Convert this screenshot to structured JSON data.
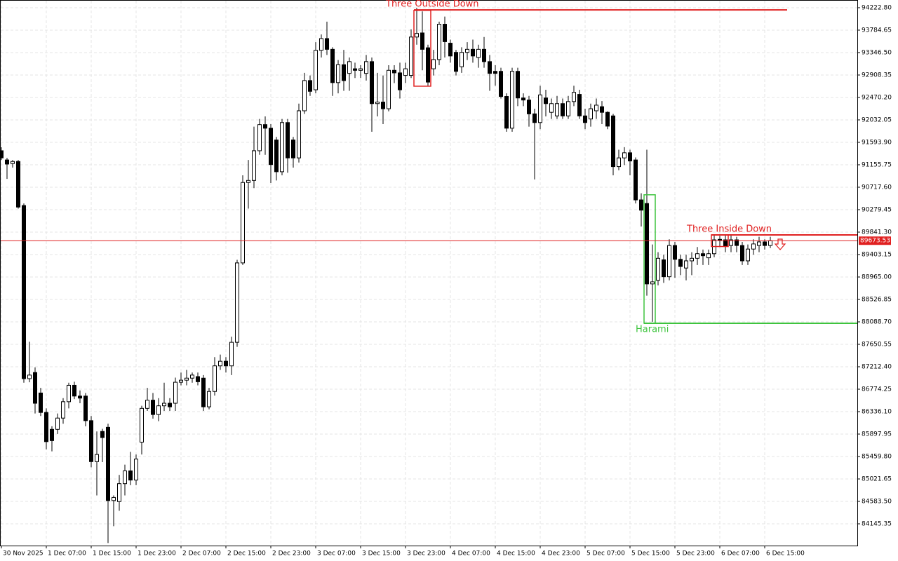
{
  "chart_data": {
    "type": "candlestick",
    "categories": [
      "30 Nov 2025",
      null,
      null,
      null,
      null,
      null,
      null,
      null,
      "1 Dec 07:00",
      null,
      null,
      null,
      null,
      null,
      null,
      null,
      "1 Dec 15:00",
      null,
      null,
      null,
      null,
      null,
      null,
      null,
      "1 Dec 23:00",
      null,
      null,
      null,
      null,
      null,
      null,
      null,
      "2 Dec 07:00",
      null,
      null,
      null,
      null,
      null,
      null,
      null,
      "2 Dec 15:00",
      null,
      null,
      null,
      null,
      null,
      null,
      null,
      "2 Dec 23:00",
      null,
      null,
      null,
      null,
      null,
      null,
      null,
      "3 Dec 07:00",
      null,
      null,
      null,
      null,
      null,
      null,
      null,
      "3 Dec 15:00",
      null,
      null,
      null,
      null,
      null,
      null,
      null,
      "3 Dec 23:00",
      null,
      null,
      null,
      null,
      null,
      null,
      null,
      "4 Dec 07:00",
      null,
      null,
      null,
      null,
      null,
      null,
      null,
      "4 Dec 15:00",
      null,
      null,
      null,
      null,
      null,
      null,
      null,
      "4 Dec 23:00",
      null,
      null,
      null,
      null,
      null,
      null,
      null,
      "5 Dec 07:00",
      null,
      null,
      null,
      null,
      null,
      null,
      null,
      "5 Dec 15:00",
      null,
      null,
      null,
      null,
      null,
      null,
      null,
      "5 Dec 23:00",
      null,
      null,
      null,
      null,
      null,
      null,
      null,
      "6 Dec 07:00",
      null,
      null,
      null,
      null,
      null,
      null,
      null,
      "6 Dec 15:00",
      null
    ],
    "open": [
      91430,
      91250,
      91180,
      91220,
      90360,
      86980,
      87100,
      86700,
      86320,
      85990,
      85990,
      86210,
      86530,
      86850,
      86640,
      86640,
      86160,
      85360,
      85950,
      86030,
      84600,
      84580,
      84930,
      85180,
      85000,
      85740,
      86400,
      86560,
      86280,
      86450,
      86500,
      86500,
      86910,
      86950,
      86990,
      87020,
      86990,
      86430,
      86730,
      87230,
      87320,
      87230,
      87690,
      89240,
      90810,
      90850,
      91430,
      91940,
      91870,
      91640,
      91020,
      91980,
      91640,
      91290,
      92210,
      92800,
      92620,
      93390,
      93620,
      93410,
      92760,
      93110,
      92940,
      93030,
      93000,
      92940,
      93170,
      92350,
      92380,
      92250,
      93000,
      92950,
      92900,
      92900,
      93650,
      93730,
      93440,
      93030,
      93210,
      93900,
      93530,
      93350,
      93070,
      93350,
      93410,
      93250,
      93410,
      93170,
      92980,
      92980,
      92490,
      91870,
      92980,
      92460,
      92420,
      92150,
      91980,
      92460,
      92180,
      92110,
      92350,
      92110,
      92390,
      92530,
      92110,
      92050,
      92210,
      92290,
      92180,
      92110,
      91120,
      91290,
      91390,
      91250,
      90470,
      90400,
      88830,
      88900,
      89300,
      88970,
      89580,
      89310,
      89140,
      89280,
      89330,
      89420,
      89340,
      89420,
      89690,
      89690,
      89580,
      89690,
      89580,
      89280,
      89510,
      89580,
      89650,
      89580
    ],
    "high": [
      91500,
      91290,
      91250,
      91250,
      90400,
      87700,
      87200,
      86800,
      86400,
      86050,
      86300,
      86600,
      86900,
      86920,
      86750,
      86700,
      86250,
      85950,
      86000,
      86100,
      84700,
      85100,
      85300,
      85550,
      85500,
      86450,
      86800,
      86700,
      86600,
      86900,
      86600,
      87000,
      87100,
      87150,
      87100,
      87100,
      87050,
      86800,
      87400,
      87450,
      87400,
      87800,
      89300,
      90950,
      91250,
      91900,
      92050,
      92100,
      91950,
      91700,
      92050,
      92050,
      91700,
      92350,
      92950,
      92900,
      93550,
      93700,
      93950,
      93450,
      93200,
      93400,
      93250,
      93150,
      93100,
      93300,
      93250,
      92950,
      92900,
      93100,
      93100,
      93150,
      93150,
      93800,
      94220,
      94150,
      93500,
      93400,
      93950,
      94050,
      93600,
      93400,
      93450,
      93550,
      93600,
      93500,
      93650,
      93300,
      93100,
      93050,
      92550,
      93050,
      93050,
      92550,
      92500,
      92250,
      92700,
      92620,
      92450,
      92500,
      92450,
      92500,
      92700,
      92620,
      92250,
      92350,
      92450,
      92400,
      92200,
      92150,
      91450,
      91500,
      91450,
      91300,
      90600,
      91450,
      89600,
      89450,
      89400,
      89700,
      89650,
      89400,
      89400,
      89450,
      89550,
      89500,
      89500,
      89800,
      89770,
      89780,
      89800,
      89750,
      89650,
      89600,
      89700,
      89750,
      89700,
      89750
    ],
    "low": [
      91250,
      90880,
      91100,
      90300,
      86900,
      86910,
      86300,
      86250,
      85600,
      85560,
      85900,
      86100,
      86400,
      86580,
      86500,
      86050,
      85250,
      84700,
      85350,
      83770,
      84100,
      84400,
      84700,
      84900,
      84900,
      85500,
      86350,
      86200,
      86150,
      86350,
      86350,
      86350,
      86850,
      86850,
      86900,
      86850,
      86350,
      86380,
      86650,
      87150,
      87100,
      87050,
      87600,
      89200,
      90300,
      90700,
      91350,
      91350,
      90800,
      90850,
      90950,
      91000,
      91100,
      91200,
      92150,
      92500,
      92550,
      93250,
      93300,
      92500,
      92550,
      92600,
      92600,
      92850,
      92850,
      92800,
      91800,
      92100,
      91950,
      92200,
      92750,
      92450,
      92750,
      92850,
      93500,
      93000,
      92700,
      92900,
      93100,
      93250,
      93150,
      92900,
      92950,
      93200,
      93150,
      93050,
      93050,
      92600,
      92700,
      92450,
      91800,
      91800,
      92300,
      92300,
      91900,
      90870,
      91850,
      92100,
      92050,
      92050,
      92050,
      92050,
      92300,
      92050,
      91850,
      91900,
      92050,
      91950,
      91850,
      90950,
      91050,
      91150,
      90950,
      90400,
      89950,
      88600,
      88090,
      88800,
      88850,
      88900,
      88950,
      89000,
      88900,
      89000,
      89200,
      89200,
      89200,
      89350,
      89550,
      89450,
      89450,
      89450,
      89200,
      89200,
      89400,
      89450,
      89500,
      89530
    ],
    "close": [
      91290,
      91170,
      91220,
      90330,
      86980,
      87050,
      86500,
      86320,
      85750,
      85770,
      86210,
      86530,
      86850,
      86640,
      86600,
      86160,
      85360,
      85500,
      85830,
      84600,
      84660,
      84930,
      85180,
      85000,
      85410,
      86400,
      86560,
      86280,
      86450,
      86500,
      86430,
      86910,
      86950,
      86990,
      87050,
      86920,
      86430,
      86730,
      87230,
      87320,
      87230,
      87690,
      89240,
      90810,
      90850,
      91430,
      91940,
      91870,
      91160,
      91020,
      91980,
      91290,
      91290,
      92210,
      92800,
      92590,
      93390,
      93620,
      93410,
      92760,
      93110,
      92800,
      93170,
      93000,
      93030,
      93170,
      92350,
      92380,
      92250,
      93000,
      92950,
      92620,
      93030,
      93650,
      93720,
      93410,
      92770,
      93210,
      93900,
      93560,
      93280,
      92980,
      93350,
      93410,
      93280,
      93410,
      93170,
      92940,
      92940,
      92490,
      91870,
      92980,
      92460,
      92420,
      92150,
      91980,
      92520,
      92350,
      92350,
      92350,
      92110,
      92390,
      92570,
      92110,
      91980,
      92250,
      92320,
      92180,
      91910,
      91120,
      91290,
      91390,
      91230,
      90470,
      90270,
      88830,
      88870,
      89330,
      88970,
      89580,
      89310,
      89170,
      89280,
      89330,
      89420,
      89380,
      89420,
      89690,
      89700,
      89560,
      89690,
      89580,
      89280,
      89510,
      89610,
      89650,
      89580,
      89673.53
    ],
    "ylim": [
      83721,
      94373
    ],
    "yticks": [
      {
        "value": 94222.8,
        "label": "94222.80"
      },
      {
        "value": 93784.65,
        "label": "93784.65"
      },
      {
        "value": 93346.5,
        "label": "93346.50"
      },
      {
        "value": 92908.35,
        "label": "92908.35"
      },
      {
        "value": 92470.2,
        "label": "92470.20"
      },
      {
        "value": 92032.05,
        "label": "92032.05"
      },
      {
        "value": 91593.9,
        "label": "91593.90"
      },
      {
        "value": 91155.75,
        "label": "91155.75"
      },
      {
        "value": 90717.6,
        "label": "90717.60"
      },
      {
        "value": 90279.45,
        "label": "90279.45"
      },
      {
        "value": 89841.3,
        "label": "89841.30"
      },
      {
        "value": 89403.15,
        "label": "89403.15"
      },
      {
        "value": 88965,
        "label": "88965.00"
      },
      {
        "value": 88526.85,
        "label": "88526.85"
      },
      {
        "value": 88088.7,
        "label": "88088.70"
      },
      {
        "value": 87650.55,
        "label": "87650.55"
      },
      {
        "value": 87212.4,
        "label": "87212.40"
      },
      {
        "value": 86774.25,
        "label": "86774.25"
      },
      {
        "value": 86336.1,
        "label": "86336.10"
      },
      {
        "value": 85897.95,
        "label": "85897.95"
      },
      {
        "value": 85459.8,
        "label": "85459.80"
      },
      {
        "value": 85021.65,
        "label": "85021.65"
      },
      {
        "value": 84583.5,
        "label": "84583.50"
      },
      {
        "value": 84145.35,
        "label": "84145.35"
      }
    ],
    "grid": true,
    "current_price": 89673.53,
    "current_price_color": "#e02020",
    "patterns": [
      {
        "label": "Three Outside Down",
        "color": "#e02020",
        "level": 94180,
        "top": 94170,
        "bottom": 92690,
        "candles": [
          74,
          76
        ]
      },
      {
        "label": "Three Inside Down",
        "color": "#e02020",
        "level": 89787,
        "top": 89787,
        "bottom": 89560,
        "candles": [
          127,
          129
        ]
      },
      {
        "label": "Harami",
        "color": "#3ec43e",
        "level": 88062,
        "top": 90570,
        "bottom": 88062,
        "candles": [
          115,
          116
        ]
      }
    ]
  }
}
